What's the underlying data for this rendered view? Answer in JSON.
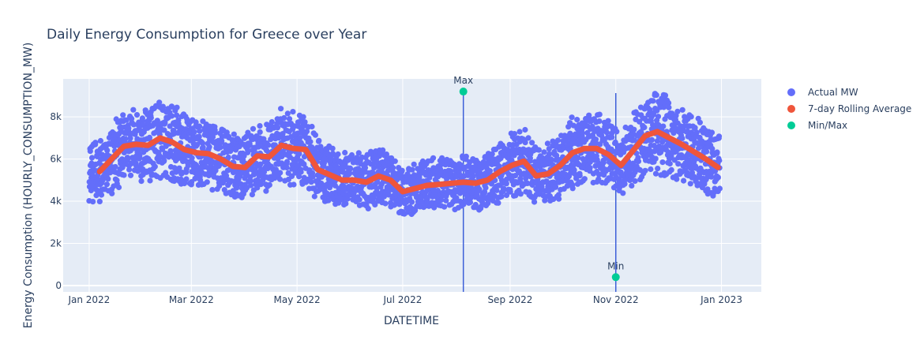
{
  "chart_data": {
    "type": "scatter",
    "title": "Daily Energy Consumption for Greece over Year",
    "xlabel": "DATETIME",
    "ylabel": "Energy Consumption (HOURLY_CONSUMPTION_MW)",
    "xlim": [
      "2021-12-17",
      "2023-01-24"
    ],
    "ylim": [
      -300,
      9800
    ],
    "x_ticks": [
      {
        "date": "2022-01-01",
        "label": "Jan 2022"
      },
      {
        "date": "2022-03-01",
        "label": "Mar 2022"
      },
      {
        "date": "2022-05-01",
        "label": "May 2022"
      },
      {
        "date": "2022-07-01",
        "label": "Jul 2022"
      },
      {
        "date": "2022-09-01",
        "label": "Sep 2022"
      },
      {
        "date": "2022-11-01",
        "label": "Nov 2022"
      },
      {
        "date": "2023-01-01",
        "label": "Jan 2023"
      }
    ],
    "y_ticks": [
      {
        "value": 0,
        "label": "0"
      },
      {
        "value": 2000,
        "label": "2k"
      },
      {
        "value": 4000,
        "label": "4k"
      },
      {
        "value": 6000,
        "label": "6k"
      },
      {
        "value": 8000,
        "label": "8k"
      }
    ],
    "grid": true,
    "legend_position": "right",
    "series": [
      {
        "name": "Actual MW",
        "color": "#636efa",
        "marker": "point",
        "note": "hourly values, daily swing roughly from 0.72x to 1.25x of the rolling average"
      },
      {
        "name": "7-day Rolling Average",
        "color": "#ef553b",
        "marker": "thick-line",
        "points": [
          [
            "2022-01-07",
            5400
          ],
          [
            "2022-01-14",
            6000
          ],
          [
            "2022-01-21",
            6600
          ],
          [
            "2022-01-28",
            6700
          ],
          [
            "2022-02-04",
            6650
          ],
          [
            "2022-02-11",
            7000
          ],
          [
            "2022-02-18",
            6800
          ],
          [
            "2022-02-25",
            6450
          ],
          [
            "2022-03-04",
            6300
          ],
          [
            "2022-03-11",
            6250
          ],
          [
            "2022-03-18",
            6000
          ],
          [
            "2022-03-25",
            5650
          ],
          [
            "2022-04-01",
            5600
          ],
          [
            "2022-04-08",
            6150
          ],
          [
            "2022-04-15",
            6100
          ],
          [
            "2022-04-22",
            6650
          ],
          [
            "2022-04-29",
            6500
          ],
          [
            "2022-05-06",
            6450
          ],
          [
            "2022-05-13",
            5500
          ],
          [
            "2022-05-20",
            5250
          ],
          [
            "2022-05-27",
            5000
          ],
          [
            "2022-06-03",
            5000
          ],
          [
            "2022-06-10",
            4900
          ],
          [
            "2022-06-17",
            5200
          ],
          [
            "2022-06-24",
            5000
          ],
          [
            "2022-07-01",
            4450
          ],
          [
            "2022-07-08",
            4600
          ],
          [
            "2022-07-15",
            4750
          ],
          [
            "2022-07-22",
            4800
          ],
          [
            "2022-07-29",
            4850
          ],
          [
            "2022-08-05",
            4900
          ],
          [
            "2022-08-12",
            4850
          ],
          [
            "2022-08-19",
            5000
          ],
          [
            "2022-08-26",
            5400
          ],
          [
            "2022-09-02",
            5700
          ],
          [
            "2022-09-09",
            5900
          ],
          [
            "2022-09-16",
            5200
          ],
          [
            "2022-09-23",
            5300
          ],
          [
            "2022-09-30",
            5700
          ],
          [
            "2022-10-07",
            6300
          ],
          [
            "2022-10-14",
            6500
          ],
          [
            "2022-10-21",
            6500
          ],
          [
            "2022-10-28",
            6200
          ],
          [
            "2022-11-04",
            5700
          ],
          [
            "2022-11-11",
            6400
          ],
          [
            "2022-11-18",
            7100
          ],
          [
            "2022-11-25",
            7300
          ],
          [
            "2022-12-02",
            7000
          ],
          [
            "2022-12-09",
            6700
          ],
          [
            "2022-12-16",
            6350
          ],
          [
            "2022-12-23",
            6000
          ],
          [
            "2022-12-30",
            5600
          ]
        ]
      },
      {
        "name": "Min/Max",
        "color": "#00cc96",
        "marker": "circle",
        "points": [
          {
            "label": "Max",
            "x": "2022-08-05",
            "y": 9200
          },
          {
            "label": "Min",
            "x": "2022-11-01",
            "y": 400
          }
        ]
      }
    ],
    "reference_lines": [
      {
        "x": "2022-08-05",
        "color": "#3d5fd8"
      },
      {
        "x": "2022-11-01",
        "color": "#3d5fd8"
      }
    ]
  }
}
